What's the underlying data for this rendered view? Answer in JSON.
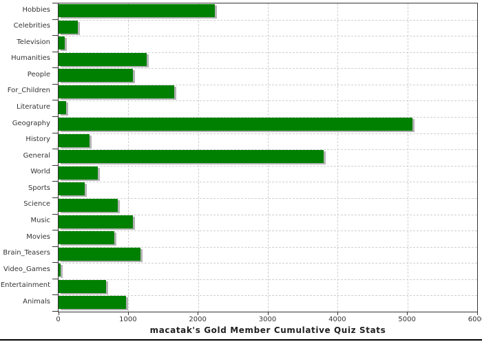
{
  "chart_data": {
    "type": "bar",
    "orientation": "horizontal",
    "title": "macatak's Gold Member Cumulative Quiz Stats",
    "categories": [
      "Hobbies",
      "Celebrities",
      "Television",
      "Humanities",
      "People",
      "For_Children",
      "Literature",
      "Geography",
      "History",
      "General",
      "World",
      "Sports",
      "Science",
      "Music",
      "Movies",
      "Brain_Teasers",
      "Video_Games",
      "Entertainment",
      "Animals"
    ],
    "values": [
      2240,
      280,
      85,
      1260,
      1070,
      1660,
      105,
      5070,
      445,
      3800,
      560,
      375,
      850,
      1065,
      800,
      1170,
      30,
      680,
      965
    ],
    "xlabel": "",
    "ylabel": "",
    "xlim": [
      0,
      6000
    ],
    "xticks": [
      0,
      1000,
      2000,
      3000,
      4000,
      5000,
      6000
    ],
    "grid": "dashed, vertical at each 1000 and horizontal at each row boundary",
    "legend": "none",
    "colors": {
      "bar": "#008000",
      "bar_shadow": "#b3b3b3",
      "gridline": "#cfcfcf",
      "axis": "#333333",
      "text": "#333333",
      "title": "#222222",
      "background": "#ffffff",
      "bottom_rule": "#000000"
    }
  }
}
